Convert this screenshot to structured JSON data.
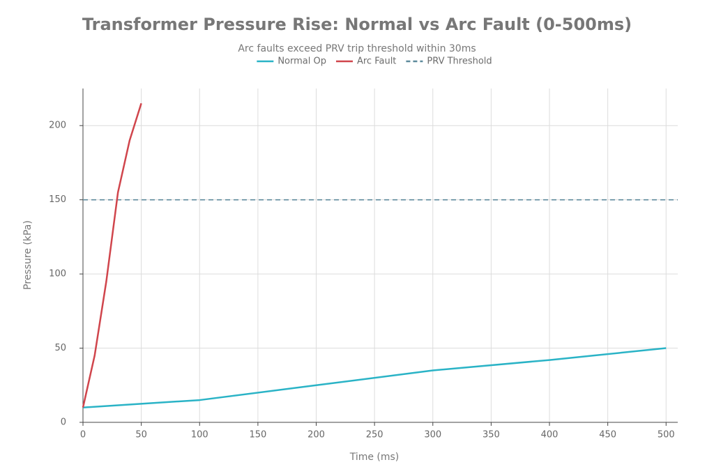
{
  "chart_data": {
    "type": "line",
    "title": "Transformer Pressure Rise: Normal vs Arc Fault (0-500ms)",
    "subtitle": "Arc faults exceed PRV trip threshold within 30ms",
    "x_label": "Time (ms)",
    "y_label": "Pressure (kPa)",
    "series": [
      {
        "name": "Normal Op",
        "color": "#2ab3c6",
        "x": [
          0,
          50,
          100,
          200,
          300,
          400,
          500
        ],
        "values": [
          10,
          12.5,
          15,
          25,
          35,
          42,
          50
        ]
      },
      {
        "name": "Arc Fault",
        "color": "#d0454c",
        "x": [
          0,
          10,
          20,
          30,
          40,
          50
        ],
        "values": [
          10,
          45,
          95,
          155,
          190,
          215
        ]
      }
    ],
    "reference_lines": [
      {
        "name": "PRV Threshold",
        "value": 150,
        "color": "#5d8a9c",
        "dash": true
      }
    ],
    "xlim": [
      0,
      510
    ],
    "ylim": [
      0,
      225
    ],
    "xticks": [
      0,
      50,
      100,
      150,
      200,
      250,
      300,
      350,
      400,
      450,
      500
    ],
    "yticks": [
      0,
      50,
      100,
      150,
      200
    ],
    "grid": true
  }
}
